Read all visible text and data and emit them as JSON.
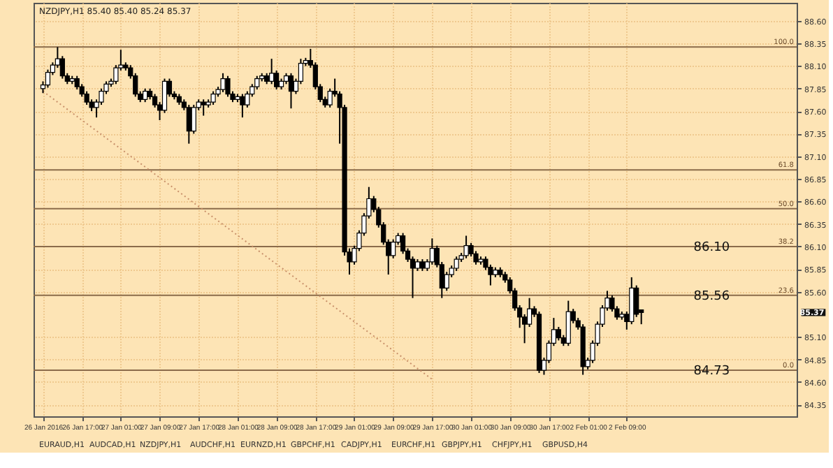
{
  "chart_data": {
    "type": "candlestick",
    "title": "NZDJPY,H1 85.40 85.40 85.24 85.37",
    "categories": [
      "26 Jan 2016",
      null,
      null,
      null,
      null,
      null,
      null,
      null,
      "26 Jan 17:00",
      null,
      null,
      null,
      null,
      null,
      null,
      null,
      "27 Jan 01:00",
      null,
      null,
      null,
      null,
      null,
      null,
      null,
      "27 Jan 09:00",
      null,
      null,
      null,
      null,
      null,
      null,
      null,
      "27 Jan 17:00",
      null,
      null,
      null,
      null,
      null,
      null,
      null,
      "28 Jan 01:00",
      null,
      null,
      null,
      null,
      null,
      null,
      null,
      "28 Jan 09:00",
      null,
      null,
      null,
      null,
      null,
      null,
      null,
      "28 Jan 17:00",
      null,
      null,
      null,
      null,
      null,
      null,
      null,
      "29 Jan 01:00",
      null,
      null,
      null,
      null,
      null,
      null,
      null,
      "29 Jan 09:00",
      null,
      null,
      null,
      null,
      null,
      null,
      null,
      "29 Jan 17:00",
      null,
      null,
      null,
      null,
      null,
      null,
      null,
      "30 Jan 01:00",
      null,
      null,
      null,
      null,
      null,
      null,
      null,
      "30 Jan 09:00",
      null,
      null,
      null,
      null,
      null,
      null,
      null,
      "30 Jan 17:00",
      null,
      null,
      null,
      null,
      null,
      null,
      null,
      "2 Feb 01:00",
      null,
      null,
      null,
      null,
      null,
      null,
      null,
      "2 Feb 09:00",
      null,
      null,
      null,
      null,
      null,
      null,
      null,
      null,
      null,
      null,
      null,
      null,
      null,
      null,
      null,
      null,
      null,
      null,
      null,
      null,
      null,
      null,
      null,
      null,
      null,
      null,
      null,
      null,
      null,
      null,
      null,
      null,
      null
    ],
    "ohlc": [
      [
        87.85,
        87.93,
        87.8,
        87.89
      ],
      [
        87.89,
        88.06,
        87.86,
        88.03
      ],
      [
        88.03,
        88.14,
        88.0,
        88.11
      ],
      [
        88.11,
        88.31,
        88.08,
        88.18
      ],
      [
        88.18,
        88.21,
        87.96,
        87.99
      ],
      [
        87.99,
        88.02,
        87.9,
        87.93
      ],
      [
        87.93,
        87.99,
        87.9,
        87.96
      ],
      [
        87.96,
        87.99,
        87.84,
        87.87
      ],
      [
        87.87,
        87.9,
        87.76,
        87.79
      ],
      [
        87.79,
        87.82,
        87.67,
        87.7
      ],
      [
        87.7,
        87.73,
        87.6,
        87.64
      ],
      [
        87.64,
        87.73,
        87.53,
        87.7
      ],
      [
        87.7,
        87.85,
        87.67,
        87.82
      ],
      [
        87.82,
        87.93,
        87.79,
        87.9
      ],
      [
        87.9,
        87.96,
        87.87,
        87.93
      ],
      [
        87.93,
        88.11,
        87.9,
        88.08
      ],
      [
        88.08,
        88.28,
        88.05,
        88.11
      ],
      [
        88.11,
        88.14,
        88.05,
        88.08
      ],
      [
        88.08,
        88.11,
        87.96,
        87.99
      ],
      [
        87.99,
        88.02,
        87.76,
        87.79
      ],
      [
        87.79,
        87.82,
        87.7,
        87.73
      ],
      [
        87.73,
        87.85,
        87.7,
        87.82
      ],
      [
        87.82,
        87.85,
        87.73,
        87.76
      ],
      [
        87.76,
        87.79,
        87.64,
        87.67
      ],
      [
        87.67,
        87.7,
        87.5,
        87.61
      ],
      [
        87.61,
        87.96,
        87.58,
        87.93
      ],
      [
        87.93,
        87.96,
        87.76,
        87.79
      ],
      [
        87.79,
        87.82,
        87.73,
        87.76
      ],
      [
        87.76,
        87.79,
        87.67,
        87.7
      ],
      [
        87.7,
        87.73,
        87.61,
        87.64
      ],
      [
        87.64,
        87.67,
        87.24,
        87.38
      ],
      [
        87.38,
        87.67,
        87.35,
        87.64
      ],
      [
        87.64,
        87.73,
        87.61,
        87.7
      ],
      [
        87.7,
        87.73,
        87.55,
        87.67
      ],
      [
        87.67,
        87.73,
        87.64,
        87.7
      ],
      [
        87.7,
        87.82,
        87.67,
        87.79
      ],
      [
        87.79,
        87.87,
        87.76,
        87.84
      ],
      [
        87.84,
        88.02,
        87.81,
        87.96
      ],
      [
        87.96,
        87.99,
        87.76,
        87.79
      ],
      [
        87.79,
        87.82,
        87.7,
        87.73
      ],
      [
        87.73,
        87.79,
        87.7,
        87.76
      ],
      [
        87.76,
        87.79,
        87.53,
        87.67
      ],
      [
        87.67,
        87.82,
        87.64,
        87.79
      ],
      [
        87.79,
        87.9,
        87.76,
        87.87
      ],
      [
        87.87,
        87.99,
        87.84,
        87.96
      ],
      [
        87.96,
        88.02,
        87.93,
        87.99
      ],
      [
        87.99,
        88.02,
        87.9,
        87.93
      ],
      [
        87.93,
        88.18,
        87.9,
        88.02
      ],
      [
        88.02,
        88.05,
        87.84,
        87.87
      ],
      [
        87.87,
        87.96,
        87.84,
        87.93
      ],
      [
        87.93,
        88.02,
        87.9,
        87.99
      ],
      [
        87.99,
        88.02,
        87.63,
        87.82
      ],
      [
        87.82,
        87.96,
        87.79,
        87.93
      ],
      [
        87.93,
        88.18,
        87.9,
        88.13
      ],
      [
        88.13,
        88.19,
        88.1,
        88.16
      ],
      [
        88.16,
        88.29,
        88.08,
        88.11
      ],
      [
        88.11,
        88.14,
        87.84,
        87.87
      ],
      [
        87.87,
        87.9,
        87.7,
        87.73
      ],
      [
        87.73,
        87.76,
        87.64,
        87.67
      ],
      [
        87.67,
        87.85,
        87.64,
        87.82
      ],
      [
        87.82,
        87.96,
        87.76,
        87.79
      ],
      [
        87.79,
        87.82,
        87.24,
        87.64
      ],
      [
        87.64,
        87.67,
        86.0,
        86.04
      ],
      [
        86.04,
        86.08,
        85.79,
        85.93
      ],
      [
        85.93,
        86.11,
        85.9,
        86.08
      ],
      [
        86.08,
        86.28,
        86.05,
        86.25
      ],
      [
        86.25,
        86.47,
        86.22,
        86.44
      ],
      [
        86.44,
        86.76,
        86.41,
        86.63
      ],
      [
        86.63,
        86.66,
        86.48,
        86.51
      ],
      [
        86.51,
        86.54,
        86.31,
        86.34
      ],
      [
        86.34,
        86.37,
        86.12,
        86.15
      ],
      [
        86.15,
        86.18,
        85.79,
        86.0
      ],
      [
        86.0,
        86.18,
        85.97,
        86.15
      ],
      [
        86.15,
        86.25,
        86.12,
        86.22
      ],
      [
        86.22,
        86.25,
        86.02,
        86.05
      ],
      [
        86.05,
        86.08,
        85.93,
        85.96
      ],
      [
        85.96,
        85.99,
        85.53,
        85.86
      ],
      [
        85.86,
        85.96,
        85.83,
        85.93
      ],
      [
        85.93,
        85.96,
        85.83,
        85.86
      ],
      [
        85.86,
        85.96,
        85.83,
        85.93
      ],
      [
        85.93,
        86.19,
        85.9,
        86.08
      ],
      [
        86.08,
        86.11,
        85.87,
        85.9
      ],
      [
        85.9,
        85.93,
        85.53,
        85.64
      ],
      [
        85.64,
        85.82,
        85.61,
        85.79
      ],
      [
        85.79,
        85.89,
        85.76,
        85.86
      ],
      [
        85.86,
        85.99,
        85.83,
        85.96
      ],
      [
        85.96,
        86.03,
        85.93,
        86.0
      ],
      [
        86.0,
        86.22,
        85.97,
        86.11
      ],
      [
        86.11,
        86.14,
        85.99,
        86.02
      ],
      [
        86.02,
        86.05,
        85.9,
        85.93
      ],
      [
        85.93,
        85.99,
        85.9,
        85.96
      ],
      [
        85.96,
        85.99,
        85.84,
        85.87
      ],
      [
        85.87,
        85.9,
        85.67,
        85.79
      ],
      [
        85.79,
        85.87,
        85.76,
        85.84
      ],
      [
        85.84,
        85.87,
        85.76,
        85.79
      ],
      [
        85.79,
        85.82,
        85.7,
        85.73
      ],
      [
        85.73,
        85.76,
        85.58,
        85.61
      ],
      [
        85.61,
        85.64,
        85.39,
        85.42
      ],
      [
        85.42,
        85.45,
        85.2,
        85.32
      ],
      [
        85.32,
        85.35,
        85.03,
        85.24
      ],
      [
        85.24,
        85.53,
        85.21,
        85.41
      ],
      [
        85.41,
        85.44,
        85.32,
        85.35
      ],
      [
        85.35,
        85.38,
        84.7,
        84.73
      ],
      [
        84.73,
        84.87,
        84.68,
        84.84
      ],
      [
        84.84,
        85.06,
        84.81,
        85.03
      ],
      [
        85.03,
        85.31,
        85.0,
        85.18
      ],
      [
        85.18,
        85.21,
        85.06,
        85.09
      ],
      [
        85.09,
        85.12,
        85.0,
        85.03
      ],
      [
        85.03,
        85.5,
        85.0,
        85.38
      ],
      [
        85.38,
        85.41,
        85.25,
        85.28
      ],
      [
        85.28,
        85.31,
        85.18,
        85.21
      ],
      [
        85.21,
        85.24,
        84.68,
        84.77
      ],
      [
        84.77,
        84.87,
        84.74,
        84.84
      ],
      [
        84.84,
        85.06,
        84.81,
        85.03
      ],
      [
        85.03,
        85.27,
        85.0,
        85.24
      ],
      [
        85.24,
        85.45,
        85.21,
        85.42
      ],
      [
        85.42,
        85.61,
        85.39,
        85.53
      ],
      [
        85.53,
        85.56,
        85.38,
        85.41
      ],
      [
        85.41,
        85.44,
        85.29,
        85.32
      ],
      [
        85.32,
        85.38,
        85.29,
        85.35
      ],
      [
        85.35,
        85.38,
        85.18,
        85.27
      ],
      [
        85.27,
        85.76,
        85.24,
        85.64
      ],
      [
        85.64,
        85.67,
        85.32,
        85.35
      ],
      [
        85.4,
        85.4,
        85.24,
        85.37
      ],
      null,
      null,
      null,
      null,
      null,
      null,
      null,
      null,
      null,
      null,
      null,
      null,
      null,
      null,
      null,
      null,
      null,
      null,
      null,
      null,
      null,
      null,
      null,
      null,
      null,
      null,
      null,
      null,
      null,
      null
    ],
    "series": [
      {
        "type": "line",
        "x": [
          "26 Jan 2016",
          "29 Jan 17:00"
        ],
        "values": [
          87.82,
          84.63
        ],
        "color": "#c8906a",
        "line_style": "dotted"
      }
    ],
    "ylim": [
      84.22,
      88.8
    ],
    "yticks": [
      84.35,
      {
        "value": 84.6,
        "label": "84.60"
      },
      84.85,
      {
        "value": 85.1,
        "label": "85.10"
      },
      {
        "value": 85.6,
        "label": "85.60"
      },
      85.85,
      {
        "value": 86.1,
        "label": "86.10"
      },
      86.35,
      {
        "value": 86.6,
        "label": "86.60"
      },
      86.85,
      {
        "value": 87.1,
        "label": "87.10"
      },
      87.35,
      {
        "value": 87.6,
        "label": "87.60"
      },
      87.85,
      {
        "value": 88.1,
        "label": "88.10"
      },
      88.35,
      {
        "value": 88.6,
        "label": "88.60"
      }
    ],
    "grid": true,
    "ref_lines": [
      {
        "axis": "y",
        "value": 88.31,
        "color": "#8b6b4a"
      },
      {
        "axis": "y",
        "value": 86.95,
        "color": "#8b6b4a"
      },
      {
        "axis": "y",
        "value": 86.52,
        "color": "#8b6b4a"
      },
      {
        "axis": "y",
        "value": 86.1,
        "label": "86.10",
        "color": "#8b6b4a"
      },
      {
        "axis": "y",
        "value": 85.56,
        "label": "85.56",
        "color": "#8b6b4a"
      },
      {
        "axis": "y",
        "value": 84.73,
        "label": "84.73",
        "color": "#8b6b4a"
      }
    ],
    "annotations": [
      {
        "text": "100.0",
        "y": 88.31
      },
      {
        "text": "61.8",
        "y": 86.95
      },
      {
        "text": "50.0",
        "y": 86.52
      },
      {
        "text": "38.2",
        "y": 86.1
      },
      {
        "text": "23.6",
        "y": 85.56
      },
      {
        "text": "0.0",
        "y": 84.73
      },
      "85.37",
      "EURAUD,H1",
      "AUDCAD,H1",
      "NZDJPY,H1",
      "AUDCHF,H1",
      "EURNZD,H1",
      "GBPCHF,H1",
      "CADJPY,H1",
      "EURCHF,H1",
      "GBPJPY,H1",
      "CHFJPY,H1",
      "GBPUSD,H4"
    ]
  }
}
